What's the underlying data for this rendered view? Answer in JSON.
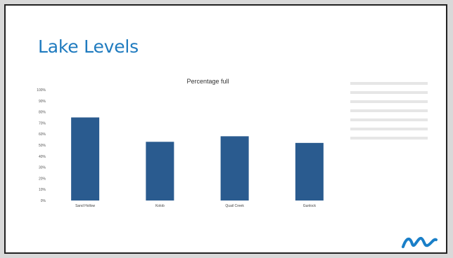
{
  "slide": {
    "title": "Lake Levels"
  },
  "colors": {
    "title": "#1f7bbf",
    "bar": "#2a5b8f",
    "logo": "#1a7fc8"
  },
  "icons": {
    "logo": "wave-logo-icon"
  },
  "chart_data": {
    "type": "bar",
    "title": "Percentage full",
    "xlabel": "",
    "ylabel": "",
    "ylim": [
      0,
      100
    ],
    "y_ticks": [
      "100%",
      "90%",
      "80%",
      "70%",
      "60%",
      "50%",
      "40%",
      "30%",
      "20%",
      "10%",
      "0%"
    ],
    "categories": [
      "Sand Hollow",
      "Kolob",
      "Quail Creek",
      "Gunlock"
    ],
    "values": [
      75,
      53,
      58,
      52
    ],
    "grid": false,
    "legend": "none"
  }
}
